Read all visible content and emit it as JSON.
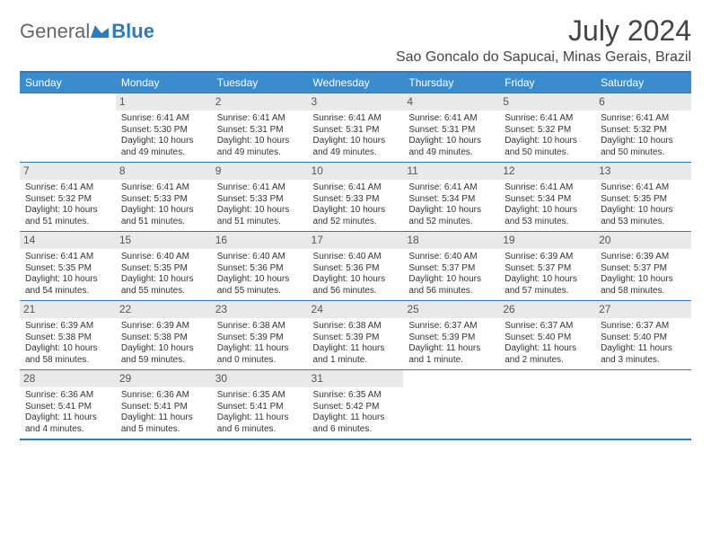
{
  "logo": {
    "text1": "General",
    "text2": "Blue"
  },
  "title": "July 2024",
  "location": "Sao Goncalo do Sapucai, Minas Gerais, Brazil",
  "colors": {
    "header_bg": "#3b8ccd",
    "header_text": "#ffffff",
    "border": "#2b7bbd",
    "daynum_bg": "#e9e9e9",
    "body_text": "#333333"
  },
  "weekdays": [
    "Sunday",
    "Monday",
    "Tuesday",
    "Wednesday",
    "Thursday",
    "Friday",
    "Saturday"
  ],
  "weeks": [
    [
      null,
      {
        "n": "1",
        "sunrise": "6:41 AM",
        "sunset": "5:30 PM",
        "daylight": "10 hours and 49 minutes."
      },
      {
        "n": "2",
        "sunrise": "6:41 AM",
        "sunset": "5:31 PM",
        "daylight": "10 hours and 49 minutes."
      },
      {
        "n": "3",
        "sunrise": "6:41 AM",
        "sunset": "5:31 PM",
        "daylight": "10 hours and 49 minutes."
      },
      {
        "n": "4",
        "sunrise": "6:41 AM",
        "sunset": "5:31 PM",
        "daylight": "10 hours and 49 minutes."
      },
      {
        "n": "5",
        "sunrise": "6:41 AM",
        "sunset": "5:32 PM",
        "daylight": "10 hours and 50 minutes."
      },
      {
        "n": "6",
        "sunrise": "6:41 AM",
        "sunset": "5:32 PM",
        "daylight": "10 hours and 50 minutes."
      }
    ],
    [
      {
        "n": "7",
        "sunrise": "6:41 AM",
        "sunset": "5:32 PM",
        "daylight": "10 hours and 51 minutes."
      },
      {
        "n": "8",
        "sunrise": "6:41 AM",
        "sunset": "5:33 PM",
        "daylight": "10 hours and 51 minutes."
      },
      {
        "n": "9",
        "sunrise": "6:41 AM",
        "sunset": "5:33 PM",
        "daylight": "10 hours and 51 minutes."
      },
      {
        "n": "10",
        "sunrise": "6:41 AM",
        "sunset": "5:33 PM",
        "daylight": "10 hours and 52 minutes."
      },
      {
        "n": "11",
        "sunrise": "6:41 AM",
        "sunset": "5:34 PM",
        "daylight": "10 hours and 52 minutes."
      },
      {
        "n": "12",
        "sunrise": "6:41 AM",
        "sunset": "5:34 PM",
        "daylight": "10 hours and 53 minutes."
      },
      {
        "n": "13",
        "sunrise": "6:41 AM",
        "sunset": "5:35 PM",
        "daylight": "10 hours and 53 minutes."
      }
    ],
    [
      {
        "n": "14",
        "sunrise": "6:41 AM",
        "sunset": "5:35 PM",
        "daylight": "10 hours and 54 minutes."
      },
      {
        "n": "15",
        "sunrise": "6:40 AM",
        "sunset": "5:35 PM",
        "daylight": "10 hours and 55 minutes."
      },
      {
        "n": "16",
        "sunrise": "6:40 AM",
        "sunset": "5:36 PM",
        "daylight": "10 hours and 55 minutes."
      },
      {
        "n": "17",
        "sunrise": "6:40 AM",
        "sunset": "5:36 PM",
        "daylight": "10 hours and 56 minutes."
      },
      {
        "n": "18",
        "sunrise": "6:40 AM",
        "sunset": "5:37 PM",
        "daylight": "10 hours and 56 minutes."
      },
      {
        "n": "19",
        "sunrise": "6:39 AM",
        "sunset": "5:37 PM",
        "daylight": "10 hours and 57 minutes."
      },
      {
        "n": "20",
        "sunrise": "6:39 AM",
        "sunset": "5:37 PM",
        "daylight": "10 hours and 58 minutes."
      }
    ],
    [
      {
        "n": "21",
        "sunrise": "6:39 AM",
        "sunset": "5:38 PM",
        "daylight": "10 hours and 58 minutes."
      },
      {
        "n": "22",
        "sunrise": "6:39 AM",
        "sunset": "5:38 PM",
        "daylight": "10 hours and 59 minutes."
      },
      {
        "n": "23",
        "sunrise": "6:38 AM",
        "sunset": "5:39 PM",
        "daylight": "11 hours and 0 minutes."
      },
      {
        "n": "24",
        "sunrise": "6:38 AM",
        "sunset": "5:39 PM",
        "daylight": "11 hours and 1 minute."
      },
      {
        "n": "25",
        "sunrise": "6:37 AM",
        "sunset": "5:39 PM",
        "daylight": "11 hours and 1 minute."
      },
      {
        "n": "26",
        "sunrise": "6:37 AM",
        "sunset": "5:40 PM",
        "daylight": "11 hours and 2 minutes."
      },
      {
        "n": "27",
        "sunrise": "6:37 AM",
        "sunset": "5:40 PM",
        "daylight": "11 hours and 3 minutes."
      }
    ],
    [
      {
        "n": "28",
        "sunrise": "6:36 AM",
        "sunset": "5:41 PM",
        "daylight": "11 hours and 4 minutes."
      },
      {
        "n": "29",
        "sunrise": "6:36 AM",
        "sunset": "5:41 PM",
        "daylight": "11 hours and 5 minutes."
      },
      {
        "n": "30",
        "sunrise": "6:35 AM",
        "sunset": "5:41 PM",
        "daylight": "11 hours and 6 minutes."
      },
      {
        "n": "31",
        "sunrise": "6:35 AM",
        "sunset": "5:42 PM",
        "daylight": "11 hours and 6 minutes."
      },
      null,
      null,
      null
    ]
  ]
}
